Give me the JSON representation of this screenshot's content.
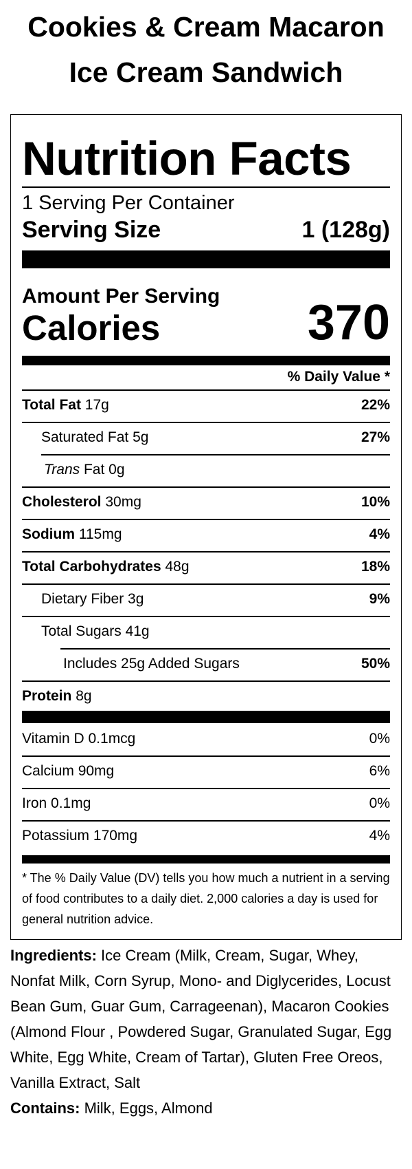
{
  "product": {
    "title_line1": "Cookies & Cream Macaron",
    "title_line2": "Ice Cream Sandwich"
  },
  "label": {
    "heading": "Nutrition Facts",
    "servings_per_container": "1 Serving Per Container",
    "serving_size_label": "Serving Size",
    "serving_size_value": "1 (128g)",
    "amount_per_serving": "Amount Per Serving",
    "calories_label": "Calories",
    "calories_value": "370",
    "daily_value_header": "% Daily Value *",
    "nutrients": [
      {
        "name": "Total Fat",
        "amount": "17g",
        "dv": "22%"
      },
      {
        "name": "Saturated Fat",
        "amount": "5g",
        "dv": "27%"
      },
      {
        "name": "Trans",
        "amount": "Fat 0g",
        "dv": ""
      },
      {
        "name": "Cholesterol",
        "amount": "30mg",
        "dv": "10%"
      },
      {
        "name": "Sodium",
        "amount": "115mg",
        "dv": "4%"
      },
      {
        "name": "Total Carbohydrates",
        "amount": "48g",
        "dv": "18%"
      },
      {
        "name": "Dietary Fiber",
        "amount": "3g",
        "dv": "9%"
      },
      {
        "name": "Total Sugars",
        "amount": "41g",
        "dv": ""
      },
      {
        "name": "Includes 25g Added Sugars",
        "amount": "",
        "dv": "50%"
      },
      {
        "name": "Protein",
        "amount": "8g",
        "dv": ""
      }
    ],
    "vitamins": [
      {
        "name": "Vitamin D",
        "amount": "0.1mcg",
        "dv": "0%"
      },
      {
        "name": "Calcium",
        "amount": "90mg",
        "dv": "6%"
      },
      {
        "name": "Iron",
        "amount": "0.1mg",
        "dv": "0%"
      },
      {
        "name": "Potassium",
        "amount": "170mg",
        "dv": "4%"
      }
    ],
    "footnote": "* The % Daily Value (DV) tells you how much a nutrient in a serving of food contributes to a daily diet. 2,000 calories a day is used for general nutrition advice."
  },
  "ingredients": {
    "label": "Ingredients:",
    "text": "Ice Cream (Milk, Cream, Sugar, Whey, Nonfat Milk, Corn Syrup, Mono- and Diglycerides, Locust Bean Gum, Guar Gum, Carrageenan), Macaron Cookies (Almond Flour , Powdered Sugar, Granulated Sugar, Egg White, Egg White, Cream of Tartar), Gluten Free Oreos, Vanilla Extract, Salt",
    "contains_label": "Contains:",
    "contains_text": "Milk, Eggs, Almond"
  }
}
